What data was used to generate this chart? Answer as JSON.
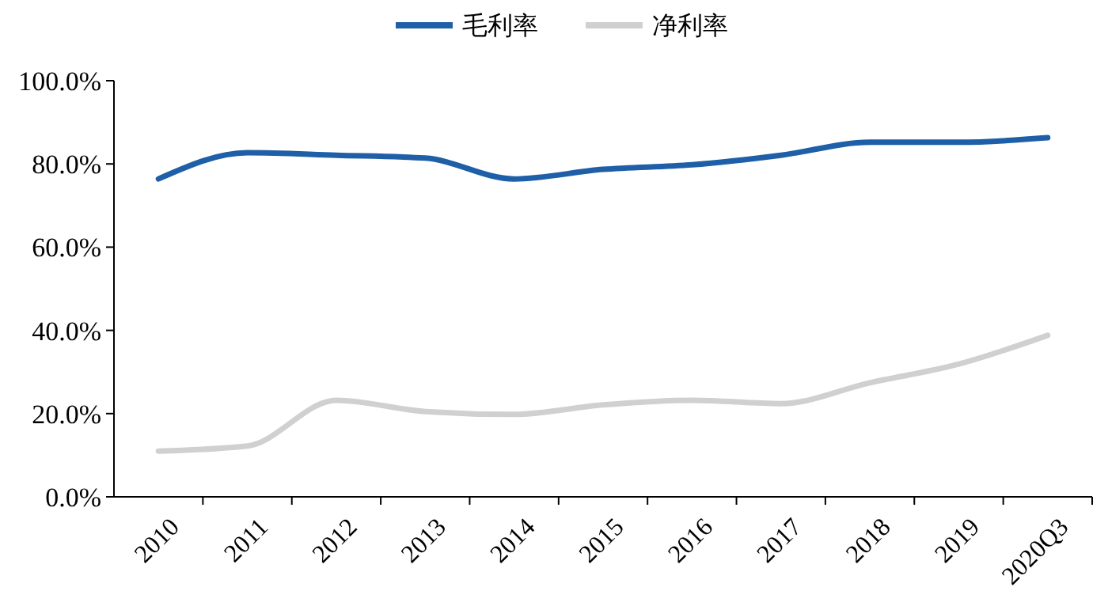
{
  "chart_data": {
    "type": "line",
    "categories": [
      "2010",
      "2011",
      "2012",
      "2013",
      "2014",
      "2015",
      "2016",
      "2017",
      "2018",
      "2019",
      "2020Q3"
    ],
    "series": [
      {
        "name": "毛利率",
        "color": "#1f5fa8",
        "values": [
          76.4,
          82.7,
          82.1,
          81.4,
          76.4,
          78.7,
          79.8,
          82.1,
          85.2,
          85.2,
          86.3
        ]
      },
      {
        "name": "净利率",
        "color": "#d0d0d0",
        "values": [
          11.0,
          12.2,
          23.2,
          20.5,
          19.8,
          22.1,
          23.2,
          22.4,
          27.4,
          31.9,
          38.8
        ]
      }
    ],
    "ylim": [
      0,
      100
    ],
    "yticks": [
      {
        "value": 0,
        "label": "0.0%"
      },
      {
        "value": 20,
        "label": "20.0%"
      },
      {
        "value": 40,
        "label": "40.0%"
      },
      {
        "value": 60,
        "label": "60.0%"
      },
      {
        "value": 80,
        "label": "80.0%"
      },
      {
        "value": 100,
        "label": "100.0%"
      }
    ],
    "legend": "top",
    "grid": false,
    "marker": "none",
    "line_style": "solid"
  }
}
